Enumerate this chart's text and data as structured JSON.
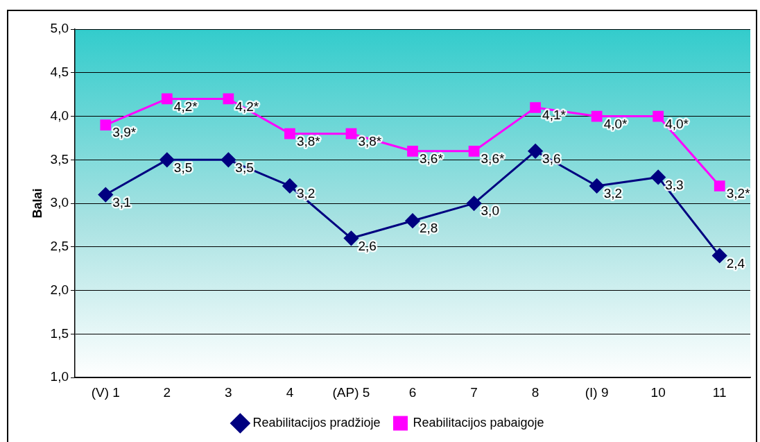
{
  "chart_data": {
    "type": "line",
    "ylabel": "Balai",
    "categories": [
      "(V) 1",
      "2",
      "3",
      "4",
      "(AP) 5",
      "6",
      "7",
      "8",
      "(I) 9",
      "10",
      "11"
    ],
    "series": [
      {
        "name": "Reabilitacijos pradžioje",
        "color": "#000080",
        "marker": "diamond",
        "values": [
          3.1,
          3.5,
          3.5,
          3.2,
          2.6,
          2.8,
          3.0,
          3.6,
          3.2,
          3.3,
          2.4
        ],
        "value_labels": [
          "3,1",
          "3,5",
          "3,5",
          "3,2",
          "2,6",
          "2,8",
          "3,0",
          "3,6",
          "3,2",
          "3,3",
          "2,4"
        ]
      },
      {
        "name": "Reabilitacijos pabaigoje",
        "color": "#ff00ff",
        "marker": "square",
        "values": [
          3.9,
          4.2,
          4.2,
          3.8,
          3.8,
          3.6,
          3.6,
          4.1,
          4.0,
          4.0,
          3.2
        ],
        "value_labels": [
          "3,9*",
          "4,2*",
          "4,2*",
          "3,8*",
          "3,8*",
          "3,6*",
          "3,6*",
          "4,1*",
          "4,0*",
          "4,0*",
          "3,2*"
        ]
      }
    ],
    "ylim": [
      1.0,
      5.0
    ],
    "yticks": [
      {
        "value": 1.0,
        "label": "1,0"
      },
      {
        "value": 1.5,
        "label": "1,5"
      },
      {
        "value": 2.0,
        "label": "2,0"
      },
      {
        "value": 2.5,
        "label": "2,5"
      },
      {
        "value": 3.0,
        "label": "3,0"
      },
      {
        "value": 3.5,
        "label": "3,5"
      },
      {
        "value": 4.0,
        "label": "4,0"
      },
      {
        "value": 4.5,
        "label": "4,5"
      },
      {
        "value": 5.0,
        "label": "5,0"
      }
    ],
    "grid": "y",
    "legend": "bottom",
    "line_style": "solid"
  }
}
